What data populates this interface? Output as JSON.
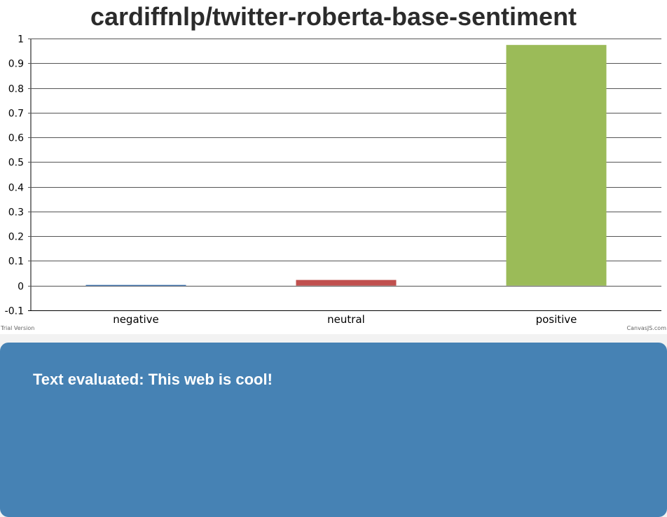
{
  "chart_data": {
    "type": "bar",
    "title": "cardiffnlp/twitter-roberta-base-sentiment",
    "categories": [
      "negative",
      "neutral",
      "positive"
    ],
    "values": [
      0.003,
      0.023,
      0.974
    ],
    "colors": [
      "#4f81bc",
      "#c0504e",
      "#9bbb58"
    ],
    "ylim": [
      -0.1,
      1
    ],
    "yticks": [
      "-0.1",
      "0",
      "0.1",
      "0.2",
      "0.3",
      "0.4",
      "0.5",
      "0.6",
      "0.7",
      "0.8",
      "0.9",
      "1"
    ],
    "grid": true
  },
  "footer": {
    "trial_label": "Trial Version",
    "credit_label": "CanvasJS.com"
  },
  "result": {
    "text": "Text evaluated: This web is cool!"
  }
}
